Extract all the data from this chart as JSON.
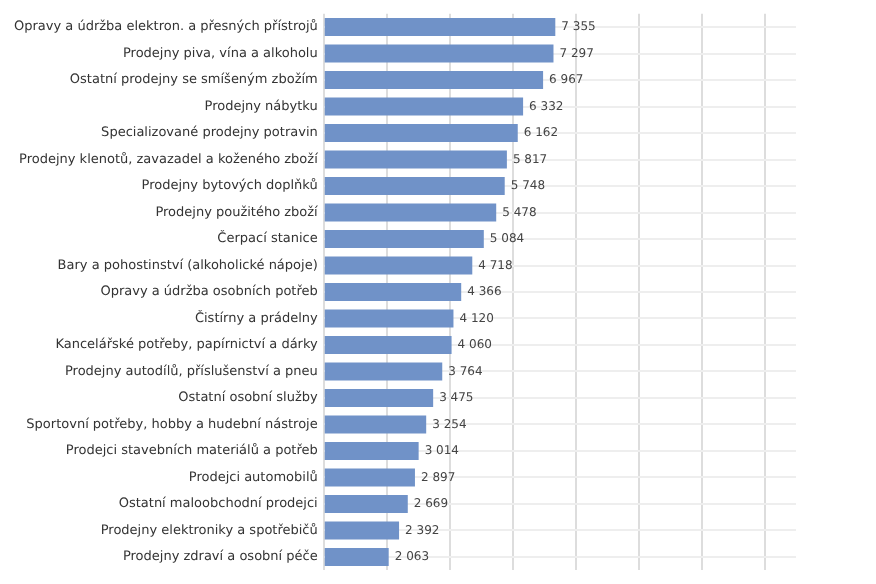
{
  "chart_data": {
    "type": "bar",
    "orientation": "horizontal",
    "categories": [
      "Opravy a údržba elektron. a přesných přístrojů",
      "Prodejny piva, vína a alkoholu",
      "Ostatní prodejny se smíšeným zbožím",
      "Prodejny nábytku",
      "Specializované prodejny potravin",
      "Prodejny klenotů, zavazadel a koženého zboží",
      "Prodejny bytových doplňků",
      "Prodejny použitého zboží",
      "Čerpací stanice",
      "Bary a pohostinství (alkoholické nápoje)",
      "Opravy a údržba osobních potřeb",
      "Čistírny a prádelny",
      "Kancelářské potřeby, papírnictví a dárky",
      "Prodejny autodílů, příslušenství a pneu",
      "Ostatní osobní služby",
      "Sportovní potřeby, hobby a hudební nástroje",
      "Prodejci stavebních materiálů a potřeb",
      "Prodejci automobilů",
      "Ostatní maloobchodní prodejci",
      "Prodejny elektroniky a spotřebičů",
      "Prodejny zdraví a osobní péče"
    ],
    "values": [
      7355,
      7297,
      6967,
      6332,
      6162,
      5817,
      5748,
      5478,
      5084,
      4718,
      4366,
      4120,
      4060,
      3764,
      3475,
      3254,
      3014,
      2897,
      2669,
      2392,
      2063
    ],
    "value_labels": [
      "7 355",
      "7 297",
      "6 967",
      "6 332",
      "6 162",
      "5 817",
      "5 748",
      "5 478",
      "5 084",
      "4 718",
      "4 366",
      "4 120",
      "4 060",
      "3 764",
      "3 475",
      "3 254",
      "3 014",
      "2 897",
      "2 669",
      "2 392",
      "2 063"
    ],
    "color": "#7092c8",
    "xlim": [
      0,
      15000
    ],
    "xticks": [
      {
        "value": 0,
        "label": null
      },
      {
        "value": 2000,
        "label": null
      },
      {
        "value": 4000,
        "label": null
      },
      {
        "value": 6000,
        "label": null
      },
      {
        "value": 8000,
        "label": null
      },
      {
        "value": 10000,
        "label": null
      },
      {
        "value": 12000,
        "label": null
      },
      {
        "value": 14000,
        "label": null
      }
    ],
    "tick_labels": "y",
    "grid": true,
    "legend": false
  }
}
